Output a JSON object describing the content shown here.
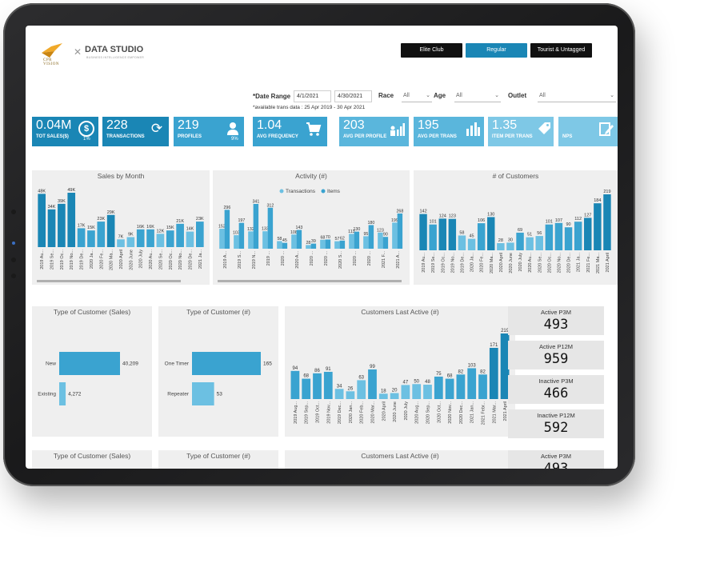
{
  "header": {
    "logo_left": "CPR VISION",
    "logo_right": "DATA STUDIO",
    "logo_sub": "BUSINESS INTELLIGENCE EMPOWER",
    "segments": [
      "Elite Club",
      "Regular",
      "Tourist & Untagged"
    ]
  },
  "filters": {
    "date_label": "*Date Range",
    "date_from": "4/1/2021",
    "date_to": "4/30/2021",
    "race_label": "Race",
    "race_value": "All",
    "age_label": "Age",
    "age_value": "All",
    "outlet_label": "Outlet",
    "outlet_value": "All",
    "available_note": "*available trans data : 25 Apr 2019 - 30 Apr 2021"
  },
  "kpis": [
    {
      "value": "0.04M",
      "label": "TOT SALES($)",
      "pct": "1%",
      "icon": "dollar-icon",
      "color": "#1a86b5"
    },
    {
      "value": "228",
      "label": "TRANSACTIONS",
      "pct": "",
      "icon": "refresh-dollar-icon",
      "color": "#1a86b5"
    },
    {
      "value": "219",
      "label": "PROFILES",
      "pct": "9%",
      "icon": "user-icon",
      "color": "#3aa3d0"
    },
    {
      "value": "1.04",
      "label": "AVG FREQUENCY",
      "pct": "",
      "icon": "cart-icon",
      "color": "#3aa3d0"
    },
    {
      "value": "203",
      "label": "AVG PER PROFILE",
      "pct": "",
      "icon": "people-chart-icon",
      "color": "#5ab6dc"
    },
    {
      "value": "195",
      "label": "AVG PER TRANS",
      "pct": "",
      "icon": "bar-chart-icon",
      "color": "#5ab6dc"
    },
    {
      "value": "1.35",
      "label": "ITEM PER TRANS",
      "pct": "",
      "icon": "tag-icon",
      "color": "#7ec8e6"
    },
    {
      "value": "",
      "label": "NPS",
      "pct": "",
      "icon": "edit-icon",
      "color": "#7ec8e6"
    }
  ],
  "colors": {
    "dark": "#1a86b5",
    "mid": "#3aa3d0",
    "light": "#6cc0e2"
  },
  "chart_data": [
    {
      "type": "bar",
      "title": "Sales by Month",
      "categories": [
        "2019 Au...",
        "2019 Se...",
        "2019 Oc...",
        "2019 No...",
        "2019 De...",
        "2020 Ja...",
        "2020 Fe...",
        "2020 Ma...",
        "2020 April",
        "2020 June",
        "2020 July",
        "2020 Au...",
        "2020 Se...",
        "2020 Oc...",
        "2020 No...",
        "2020 De...",
        "2021 Ja..."
      ],
      "values": [
        48,
        34,
        39,
        49,
        17,
        15,
        23,
        29,
        7,
        9,
        16,
        16,
        12,
        15,
        21,
        14,
        23
      ],
      "labels": [
        "48K",
        "34K",
        "39K",
        "49K",
        "17K",
        "15K",
        "23K",
        "29K",
        "7K",
        "9K",
        "16K",
        "16K",
        "12K",
        "15K",
        "21K",
        "14K",
        "23K"
      ]
    },
    {
      "type": "bar",
      "title": "Activity (#)",
      "legend": [
        "Transactions",
        "Items"
      ],
      "categories": [
        "2019 A...",
        "2019 S...",
        "2019 N...",
        "2019 ...",
        "2020 ...",
        "2020 A...",
        "2020 ...",
        "2020 ...",
        "2020 S...",
        "2020 ...",
        "2020 ...",
        "2021 F...",
        "2021 A..."
      ],
      "series": [
        {
          "name": "Transactions",
          "values": [
            152,
            103,
            132,
            133,
            58,
            108,
            28,
            68,
            57,
            113,
            95,
            123,
            199
          ]
        },
        {
          "name": "Items",
          "values": [
            296,
            197,
            341,
            312,
            45,
            143,
            39,
            70,
            62,
            130,
            180,
            90,
            268
          ]
        }
      ],
      "labels_tr": [
        "152",
        "103",
        "132",
        "133",
        "58",
        "108",
        "28",
        "68",
        "57",
        "113",
        "95",
        "123",
        "199"
      ],
      "labels_it": [
        "296",
        "197",
        "341",
        "312",
        "45",
        "143",
        "39",
        "70",
        "62",
        "130",
        "180",
        "90",
        "268"
      ]
    },
    {
      "type": "bar",
      "title": "# of Customers",
      "categories": [
        "2019 Au...",
        "2019 Se...",
        "2019 Oc...",
        "2019 No...",
        "2019 De...",
        "2020 Ja...",
        "2020 Fe...",
        "2020 Ma...",
        "2020 April",
        "2020 June",
        "2020 July",
        "2020 Au...",
        "2020 Se...",
        "2020 Oc...",
        "2020 No...",
        "2020 De...",
        "2021 Ja...",
        "2021 Fe...",
        "2021 Ma...",
        "2021 April"
      ],
      "values": [
        142,
        101,
        124,
        123,
        58,
        45,
        106,
        130,
        28,
        30,
        69,
        51,
        56,
        101,
        107,
        90,
        112,
        127,
        184,
        219
      ]
    },
    {
      "type": "bar",
      "orientation": "horizontal",
      "title": "Type of Customer (Sales)",
      "categories": [
        "New",
        "Existing"
      ],
      "values": [
        40209,
        4272
      ],
      "labels": [
        "40,209",
        "4,272"
      ]
    },
    {
      "type": "bar",
      "orientation": "horizontal",
      "title": "Type of Customer (#)",
      "categories": [
        "One Timer",
        "Repeater"
      ],
      "values": [
        165,
        53
      ]
    },
    {
      "type": "bar",
      "title": "Customers Last Active (#)",
      "categories": [
        "2019 Aug...",
        "2019 Sep...",
        "2019 Oct...",
        "2019 Nov...",
        "2019 Dec...",
        "2020 Jan...",
        "2020 Feb...",
        "2020 Mar...",
        "2020 April",
        "2020 June",
        "2020 July",
        "2020 Aug...",
        "2020 Sep...",
        "2020 Oct...",
        "2020 Nov...",
        "2020 Dec...",
        "2021 Jan...",
        "2021 Febr...",
        "2021 Mar...",
        "2021 April"
      ],
      "values": [
        94,
        68,
        86,
        91,
        34,
        26,
        63,
        99,
        18,
        20,
        47,
        50,
        48,
        75,
        68,
        82,
        103,
        82,
        171,
        219
      ]
    }
  ],
  "cards": [
    {
      "title": "Active  P3M",
      "value": "493"
    },
    {
      "title": "Active  P12M",
      "value": "959"
    },
    {
      "title": "Inactive  P3M",
      "value": "466"
    },
    {
      "title": "Inactive  P12M",
      "value": "592"
    },
    {
      "title": "Active  P3M",
      "value": "493"
    }
  ],
  "bottom_titles": [
    "Type of Customer (Sales)",
    "Type of Customer (#)",
    "Customers Last Active (#)"
  ]
}
